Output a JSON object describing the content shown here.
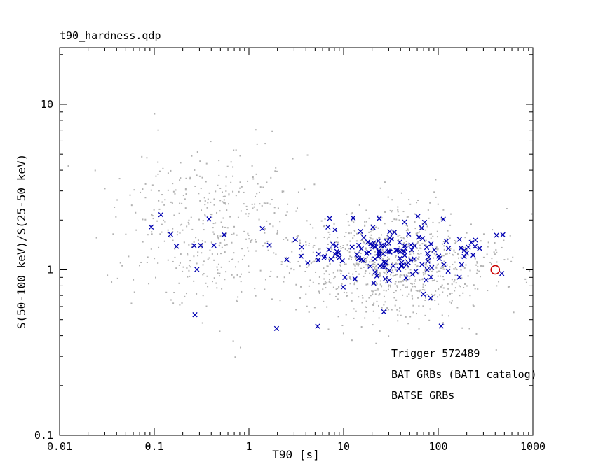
{
  "window": {
    "title": "t90_hardness.qdp"
  },
  "chart_data": {
    "type": "scatter",
    "title": "t90_hardness.qdp",
    "xlabel": "T90 [s]",
    "ylabel": "S(50-100 keV)/S(25-50 keV)",
    "xscale": "log",
    "yscale": "log",
    "xlim": [
      0.01,
      1000
    ],
    "ylim": [
      0.1,
      22
    ],
    "x_ticks": [
      0.01,
      0.1,
      1,
      10,
      100,
      1000
    ],
    "y_ticks": [
      0.1,
      1,
      10
    ],
    "grid": false,
    "frame_color": "#000000",
    "legend": {
      "position": "lower-right-inside",
      "entries": [
        {
          "label": "Trigger 572489",
          "color": "#cc0000",
          "marker": "open-circle"
        },
        {
          "label": "BAT GRBs (BAT1 catalog)",
          "color": "#0000b2",
          "marker": "x"
        },
        {
          "label": "BATSE GRBs",
          "color": "#b2b2b2",
          "marker": "dot"
        }
      ]
    },
    "series": [
      {
        "name": "BATSE GRBs",
        "marker": "dot",
        "color": "#b2b2b2",
        "seed": 12345,
        "clusters": [
          {
            "n": 900,
            "logx_mean": 1.5,
            "logx_sd": 0.55,
            "logy_mean": 0.03,
            "logy_sd": 0.17
          },
          {
            "n": 420,
            "logx_mean": -0.45,
            "logx_sd": 0.5,
            "logy_mean": 0.28,
            "logy_sd": 0.25
          }
        ]
      },
      {
        "name": "BAT GRBs (BAT1 catalog)",
        "marker": "x",
        "color": "#0000b2",
        "seed": 999,
        "clusters": [
          {
            "n": 150,
            "logx_mean": 1.55,
            "logx_sd": 0.5,
            "logy_mean": 0.09,
            "logy_sd": 0.09
          },
          {
            "n": 10,
            "logx_mean": -0.75,
            "logx_sd": 0.4,
            "logy_mean": 0.18,
            "logy_sd": 0.12
          },
          {
            "n": 5,
            "logx_mean": 0.9,
            "logx_sd": 0.7,
            "logy_mean": -0.33,
            "logy_sd": 0.06
          }
        ]
      },
      {
        "name": "Trigger 572489",
        "marker": "open-circle",
        "color": "#cc0000",
        "points": [
          [
            400,
            1.0
          ]
        ]
      }
    ]
  }
}
